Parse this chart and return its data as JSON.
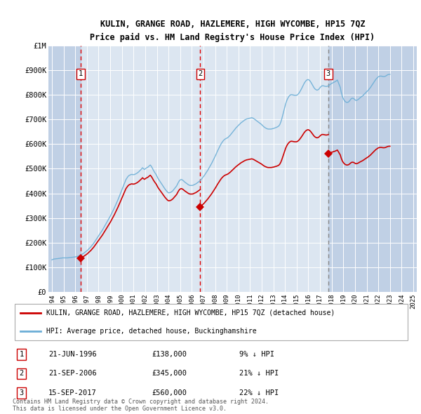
{
  "title": "KULIN, GRANGE ROAD, HAZLEMERE, HIGH WYCOMBE, HP15 7QZ",
  "subtitle": "Price paid vs. HM Land Registry's House Price Index (HPI)",
  "hpi_label": "HPI: Average price, detached house, Buckinghamshire",
  "property_label": "KULIN, GRANGE ROAD, HAZLEMERE, HIGH WYCOMBE, HP15 7QZ (detached house)",
  "hpi_color": "#6baed6",
  "property_color": "#cc0000",
  "dashed_line_color_red": "#dd0000",
  "dashed_line_color_grey": "#888888",
  "background_plot": "#dce6f1",
  "background_hatch": "#c0d0e5",
  "ylim": [
    0,
    1000000
  ],
  "xlim_start": 1993.7,
  "xlim_end": 2025.3,
  "yticks": [
    0,
    100000,
    200000,
    300000,
    400000,
    500000,
    600000,
    700000,
    800000,
    900000,
    1000000
  ],
  "ytick_labels": [
    "£0",
    "£100K",
    "£200K",
    "£300K",
    "£400K",
    "£500K",
    "£600K",
    "£700K",
    "£800K",
    "£900K",
    "£1M"
  ],
  "sale_points": [
    {
      "year": 1996.47,
      "price": 138000,
      "label": "1",
      "line_color": "#dd0000",
      "linestyle": "--"
    },
    {
      "year": 2006.72,
      "price": 345000,
      "label": "2",
      "line_color": "#dd0000",
      "linestyle": "--"
    },
    {
      "year": 2017.71,
      "price": 560000,
      "label": "3",
      "line_color": "#888888",
      "linestyle": "--"
    }
  ],
  "sale_table": [
    {
      "num": "1",
      "date": "21-JUN-1996",
      "price": "£138,000",
      "hpi": "9% ↓ HPI"
    },
    {
      "num": "2",
      "date": "21-SEP-2006",
      "price": "£345,000",
      "hpi": "21% ↓ HPI"
    },
    {
      "num": "3",
      "date": "15-SEP-2017",
      "price": "£560,000",
      "hpi": "22% ↓ HPI"
    }
  ],
  "footnote": "Contains HM Land Registry data © Crown copyright and database right 2024.\nThis data is licensed under the Open Government Licence v3.0.",
  "hpi_monthly": {
    "start_year": 1994.0,
    "end_year": 2025.0,
    "values": [
      130000,
      132000,
      133000,
      134000,
      134000,
      135000,
      135000,
      136000,
      136000,
      137000,
      137000,
      138000,
      138000,
      138000,
      138000,
      138000,
      138000,
      138500,
      139000,
      139500,
      140000,
      140500,
      141000,
      141500,
      142000,
      143000,
      144000,
      145000,
      147000,
      149000,
      151000,
      153000,
      155000,
      158000,
      161000,
      164000,
      167000,
      171000,
      175000,
      179000,
      183000,
      188000,
      193000,
      198000,
      204000,
      210000,
      216000,
      222000,
      228000,
      234000,
      240000,
      246000,
      252000,
      259000,
      266000,
      273000,
      280000,
      287000,
      294000,
      301000,
      308000,
      316000,
      324000,
      332000,
      340000,
      349000,
      358000,
      367000,
      376000,
      386000,
      396000,
      406000,
      416000,
      426000,
      436000,
      446000,
      456000,
      462000,
      468000,
      472000,
      474000,
      476000,
      477000,
      476000,
      476000,
      477000,
      479000,
      481000,
      484000,
      487000,
      491000,
      495000,
      499000,
      504000,
      500000,
      497000,
      500000,
      503000,
      505000,
      508000,
      512000,
      515000,
      510000,
      503000,
      495000,
      488000,
      482000,
      476000,
      468000,
      460000,
      454000,
      448000,
      442000,
      436000,
      430000,
      424000,
      418000,
      413000,
      408000,
      404000,
      402000,
      403000,
      404000,
      407000,
      410000,
      415000,
      420000,
      425000,
      430000,
      438000,
      446000,
      452000,
      455000,
      456000,
      454000,
      451000,
      447000,
      444000,
      441000,
      438000,
      435000,
      433000,
      432000,
      432000,
      432000,
      433000,
      435000,
      437000,
      439000,
      442000,
      445000,
      448000,
      451000,
      455000,
      460000,
      465000,
      470000,
      476000,
      482000,
      488000,
      494000,
      501000,
      508000,
      515000,
      522000,
      530000,
      538000,
      546000,
      554000,
      563000,
      572000,
      580000,
      588000,
      596000,
      603000,
      609000,
      614000,
      618000,
      621000,
      623000,
      625000,
      628000,
      632000,
      636000,
      641000,
      646000,
      651000,
      656000,
      661000,
      666000,
      670000,
      674000,
      678000,
      682000,
      686000,
      689000,
      692000,
      695000,
      698000,
      700000,
      702000,
      703000,
      704000,
      705000,
      706000,
      707000,
      706000,
      704000,
      701000,
      698000,
      695000,
      692000,
      689000,
      686000,
      683000,
      680000,
      676000,
      672000,
      669000,
      666000,
      664000,
      662000,
      661000,
      661000,
      661000,
      661000,
      662000,
      663000,
      664000,
      666000,
      667000,
      669000,
      671000,
      674000,
      680000,
      690000,
      703000,
      718000,
      734000,
      750000,
      765000,
      776000,
      785000,
      792000,
      797000,
      800000,
      801000,
      800000,
      799000,
      798000,
      798000,
      798000,
      800000,
      804000,
      809000,
      816000,
      823000,
      831000,
      839000,
      847000,
      853000,
      858000,
      861000,
      862000,
      860000,
      856000,
      850000,
      843000,
      836000,
      829000,
      824000,
      821000,
      819000,
      820000,
      823000,
      828000,
      833000,
      836000,
      837000,
      836000,
      835000,
      834000,
      834000,
      835000,
      837000,
      840000,
      843000,
      846000,
      848000,
      850000,
      852000,
      854000,
      857000,
      860000,
      850000,
      840000,
      830000,
      810000,
      795000,
      785000,
      778000,
      773000,
      770000,
      769000,
      770000,
      773000,
      778000,
      783000,
      786000,
      786000,
      784000,
      780000,
      777000,
      778000,
      780000,
      783000,
      787000,
      790000,
      793000,
      796000,
      800000,
      804000,
      808000,
      812000,
      816000,
      820000,
      825000,
      830000,
      836000,
      842000,
      848000,
      854000,
      860000,
      865000,
      869000,
      873000,
      875000,
      876000,
      876000,
      875000,
      874000,
      874000,
      875000,
      877000,
      880000,
      882000,
      883000,
      883000
    ]
  }
}
